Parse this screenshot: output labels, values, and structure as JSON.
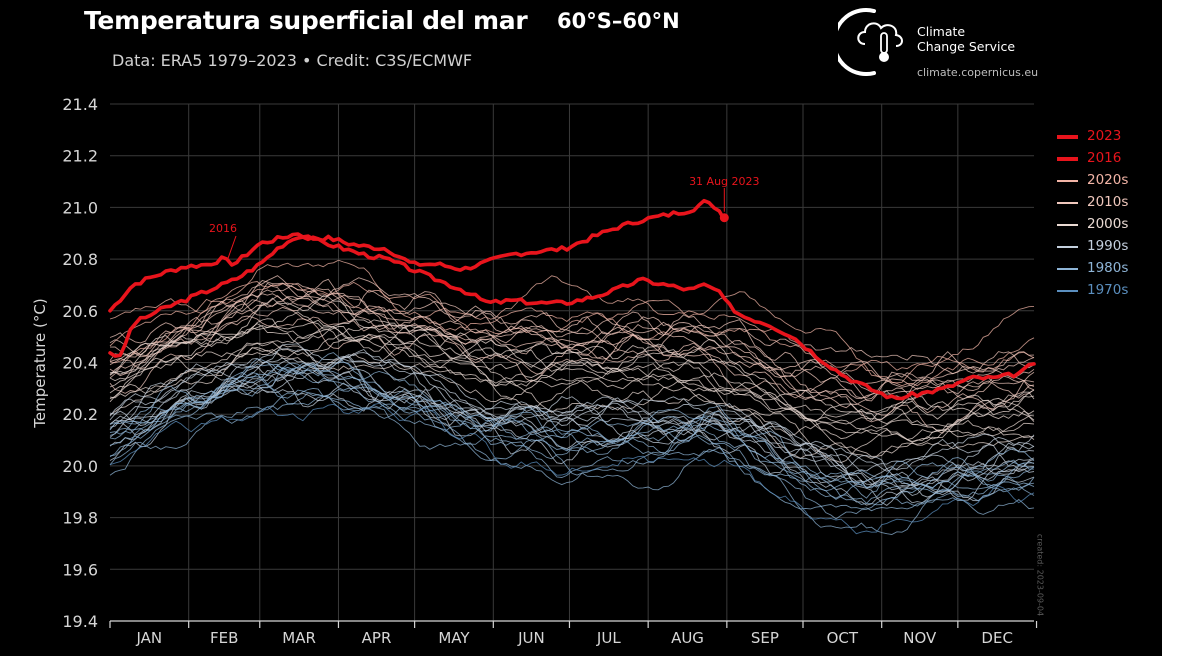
{
  "header": {
    "title": "Temperatura superficial del mar",
    "region": "60°S–60°N",
    "subtitle": "Data: ERA5 1979–2023 • Credit: C3S/ECMWF"
  },
  "logo": {
    "line1": "Climate",
    "line2": "Change Service",
    "url": "climate.copernicus.eu",
    "icon": "thermometer-cloud-icon"
  },
  "watermark": "created: 2023-09-04",
  "colors": {
    "background": "#000000",
    "highlight": "#e8141c",
    "grid": "#3a3a3a",
    "axis_text": "#d6d6d6",
    "decade_2020s": "#f2b4a6",
    "decade_2010s": "#f0c8bd",
    "decade_2000s": "#eadad3",
    "decade_1990s": "#c4d0de",
    "decade_1980s": "#8eb4d6",
    "decade_1970s": "#5b8fbf"
  },
  "chart_data": {
    "type": "line",
    "title": "Temperatura superficial del mar",
    "xlabel": "",
    "ylabel": "Temperature (°C)",
    "ylim": [
      19.4,
      21.4
    ],
    "yticks": [
      "19.4",
      "19.6",
      "19.8",
      "20.0",
      "20.2",
      "20.4",
      "20.6",
      "20.8",
      "21.0",
      "21.2",
      "21.4"
    ],
    "categories": [
      "JAN",
      "FEB",
      "MAR",
      "APR",
      "MAY",
      "JUN",
      "JUL",
      "AUG",
      "SEP",
      "OCT",
      "NOV",
      "DEC"
    ],
    "x_unit": "day of year",
    "grid": true,
    "legend_position": "right",
    "annotations": [
      {
        "text": "31 Aug 2023",
        "series": "2023",
        "x": 243,
        "y": 20.96
      },
      {
        "text": "2016",
        "series": "2016",
        "x": 48,
        "y": 20.78
      }
    ],
    "series": [
      {
        "name": "2023",
        "color": "#e8141c",
        "x": [
          1,
          10,
          20,
          30,
          40,
          45,
          50,
          55,
          60,
          68,
          75,
          80,
          88,
          95,
          100,
          110,
          120,
          130,
          140,
          150,
          160,
          170,
          180,
          190,
          200,
          210,
          220,
          230,
          235,
          240,
          243
        ],
        "y": [
          20.6,
          20.7,
          20.74,
          20.77,
          20.78,
          20.8,
          20.78,
          20.82,
          20.86,
          20.88,
          20.9,
          20.88,
          20.88,
          20.86,
          20.85,
          20.84,
          20.78,
          20.78,
          20.76,
          20.79,
          20.82,
          20.83,
          20.84,
          20.88,
          20.92,
          20.95,
          20.97,
          20.99,
          21.02,
          21.0,
          20.96
        ]
      },
      {
        "name": "2016",
        "color": "#e8141c",
        "x": [
          1,
          5,
          10,
          20,
          30,
          40,
          50,
          60,
          68,
          75,
          80,
          90,
          100,
          110,
          120,
          130,
          140,
          150,
          160,
          170,
          180,
          190,
          200,
          210,
          220,
          230,
          235,
          240,
          245,
          250,
          260,
          270,
          280,
          290,
          300,
          310,
          320,
          330,
          340,
          350,
          360,
          365
        ],
        "y": [
          20.44,
          20.42,
          20.55,
          20.6,
          20.64,
          20.68,
          20.72,
          20.78,
          20.85,
          20.89,
          20.88,
          20.85,
          20.82,
          20.8,
          20.76,
          20.72,
          20.68,
          20.63,
          20.64,
          20.63,
          20.63,
          20.65,
          20.68,
          20.72,
          20.7,
          20.68,
          20.7,
          20.68,
          20.62,
          20.58,
          20.55,
          20.5,
          20.42,
          20.35,
          20.3,
          20.26,
          20.28,
          20.3,
          20.34,
          20.34,
          20.36,
          20.4
        ]
      }
    ],
    "background_series": {
      "note": "one thin line per year 1979-2022, colored by decade",
      "legend": [
        "2020s",
        "2010s",
        "2000s",
        "1990s",
        "1980s",
        "1970s"
      ],
      "decade_profiles": [
        {
          "decade": "2020s",
          "x": [
            1,
            30,
            60,
            90,
            120,
            150,
            180,
            210,
            240,
            270,
            300,
            330,
            365
          ],
          "y": [
            20.5,
            20.62,
            20.72,
            20.7,
            20.65,
            20.58,
            20.6,
            20.62,
            20.62,
            20.48,
            20.4,
            20.42,
            20.5
          ]
        },
        {
          "decade": "2010s",
          "x": [
            1,
            30,
            60,
            90,
            120,
            150,
            180,
            210,
            240,
            270,
            300,
            330,
            365
          ],
          "y": [
            20.38,
            20.52,
            20.64,
            20.62,
            20.56,
            20.48,
            20.48,
            20.5,
            20.48,
            20.35,
            20.28,
            20.3,
            20.35
          ]
        },
        {
          "decade": "2000s",
          "x": [
            1,
            30,
            60,
            90,
            120,
            150,
            180,
            210,
            240,
            270,
            300,
            330,
            365
          ],
          "y": [
            20.28,
            20.42,
            20.52,
            20.5,
            20.45,
            20.36,
            20.34,
            20.36,
            20.34,
            20.2,
            20.12,
            20.14,
            20.2
          ]
        },
        {
          "decade": "1990s",
          "x": [
            1,
            30,
            60,
            90,
            120,
            150,
            180,
            210,
            240,
            270,
            300,
            330,
            365
          ],
          "y": [
            20.16,
            20.3,
            20.4,
            20.38,
            20.32,
            20.22,
            20.18,
            20.2,
            20.2,
            20.06,
            19.98,
            20.0,
            20.06
          ]
        },
        {
          "decade": "1980s",
          "x": [
            1,
            30,
            60,
            90,
            120,
            150,
            180,
            210,
            240,
            270,
            300,
            330,
            365
          ],
          "y": [
            20.06,
            20.22,
            20.32,
            20.3,
            20.22,
            20.12,
            20.06,
            20.08,
            20.1,
            19.96,
            19.88,
            19.9,
            19.96
          ]
        },
        {
          "decade": "1970s",
          "x": [
            1,
            30,
            60,
            90,
            120,
            150,
            180,
            210,
            240,
            270,
            300,
            330,
            365
          ],
          "y": [
            19.98,
            20.16,
            20.26,
            20.24,
            20.16,
            20.06,
            20.0,
            20.02,
            20.04,
            19.9,
            19.82,
            19.84,
            19.9
          ]
        }
      ]
    }
  }
}
